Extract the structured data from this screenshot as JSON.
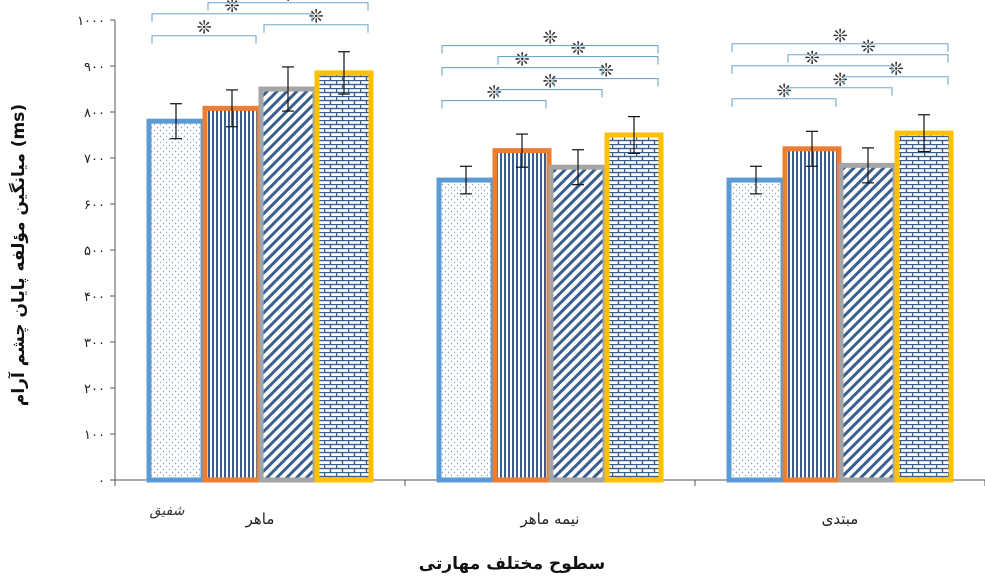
{
  "chart_data": {
    "type": "bar",
    "ylabel": "میانگین مؤلفه پایان چشم آرام (ms)",
    "xlabel": "سطوح مختلف مهارتی",
    "ylim": [
      0,
      1000
    ],
    "yticks": [
      "۰",
      "۱۰۰",
      "۲۰۰",
      "۳۰۰",
      "۴۰۰",
      "۵۰۰",
      "۶۰۰",
      "۷۰۰",
      "۸۰۰",
      "۹۰۰",
      "۱۰۰۰"
    ],
    "categories": [
      "ماهر",
      "نیمه ماهر",
      "مبتدی"
    ],
    "series": [
      {
        "values": [
          780,
          652,
          652
        ],
        "errors": [
          38,
          30,
          30
        ],
        "color": "#5b9bd5",
        "pattern": "dots"
      },
      {
        "values": [
          808,
          716,
          720
        ],
        "errors": [
          40,
          36,
          38
        ],
        "color": "#ed7d31",
        "pattern": "vertical"
      },
      {
        "values": [
          850,
          680,
          684
        ],
        "errors": [
          48,
          38,
          38
        ],
        "color": "#a5a5a5",
        "pattern": "diagonal"
      },
      {
        "values": [
          885,
          750,
          754
        ],
        "errors": [
          46,
          40,
          40
        ],
        "color": "#ffc000",
        "pattern": "brick"
      }
    ],
    "significance_marker": "❊",
    "significance": [
      [
        [
          0,
          1
        ],
        [
          0,
          2
        ],
        [
          0,
          3
        ],
        [
          1,
          3
        ],
        [
          2,
          3
        ]
      ],
      [
        [
          0,
          1
        ],
        [
          0,
          2
        ],
        [
          0,
          3
        ],
        [
          1,
          2
        ],
        [
          1,
          3
        ],
        [
          2,
          3
        ]
      ],
      [
        [
          0,
          1
        ],
        [
          0,
          2
        ],
        [
          0,
          3
        ],
        [
          1,
          2
        ],
        [
          1,
          3
        ],
        [
          2,
          3
        ]
      ]
    ],
    "signature_text": "شفیق",
    "grid": false,
    "legend": "none"
  }
}
